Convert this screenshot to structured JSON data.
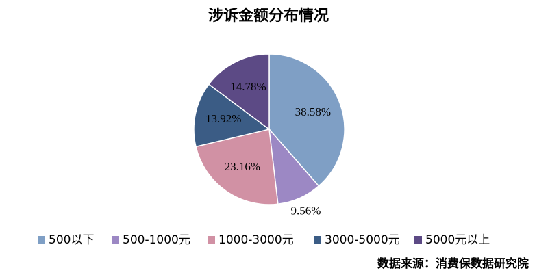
{
  "chart_data": {
    "type": "pie",
    "title": "涉诉金额分布情况",
    "categories": [
      "500以下",
      "500-1000元",
      "1000-3000元",
      "3000-5000元",
      "5000元以上"
    ],
    "values": [
      38.58,
      9.56,
      23.16,
      13.92,
      14.78
    ],
    "value_labels": [
      "38.58%",
      "9.56%",
      "23.16%",
      "13.92%",
      "14.78%"
    ],
    "colors": [
      "#7f9fc5",
      "#9c88c4",
      "#d191a4",
      "#3b5c85",
      "#5c4a85"
    ],
    "legend": "bottom",
    "source": "数据来源：消费保数据研究院"
  }
}
